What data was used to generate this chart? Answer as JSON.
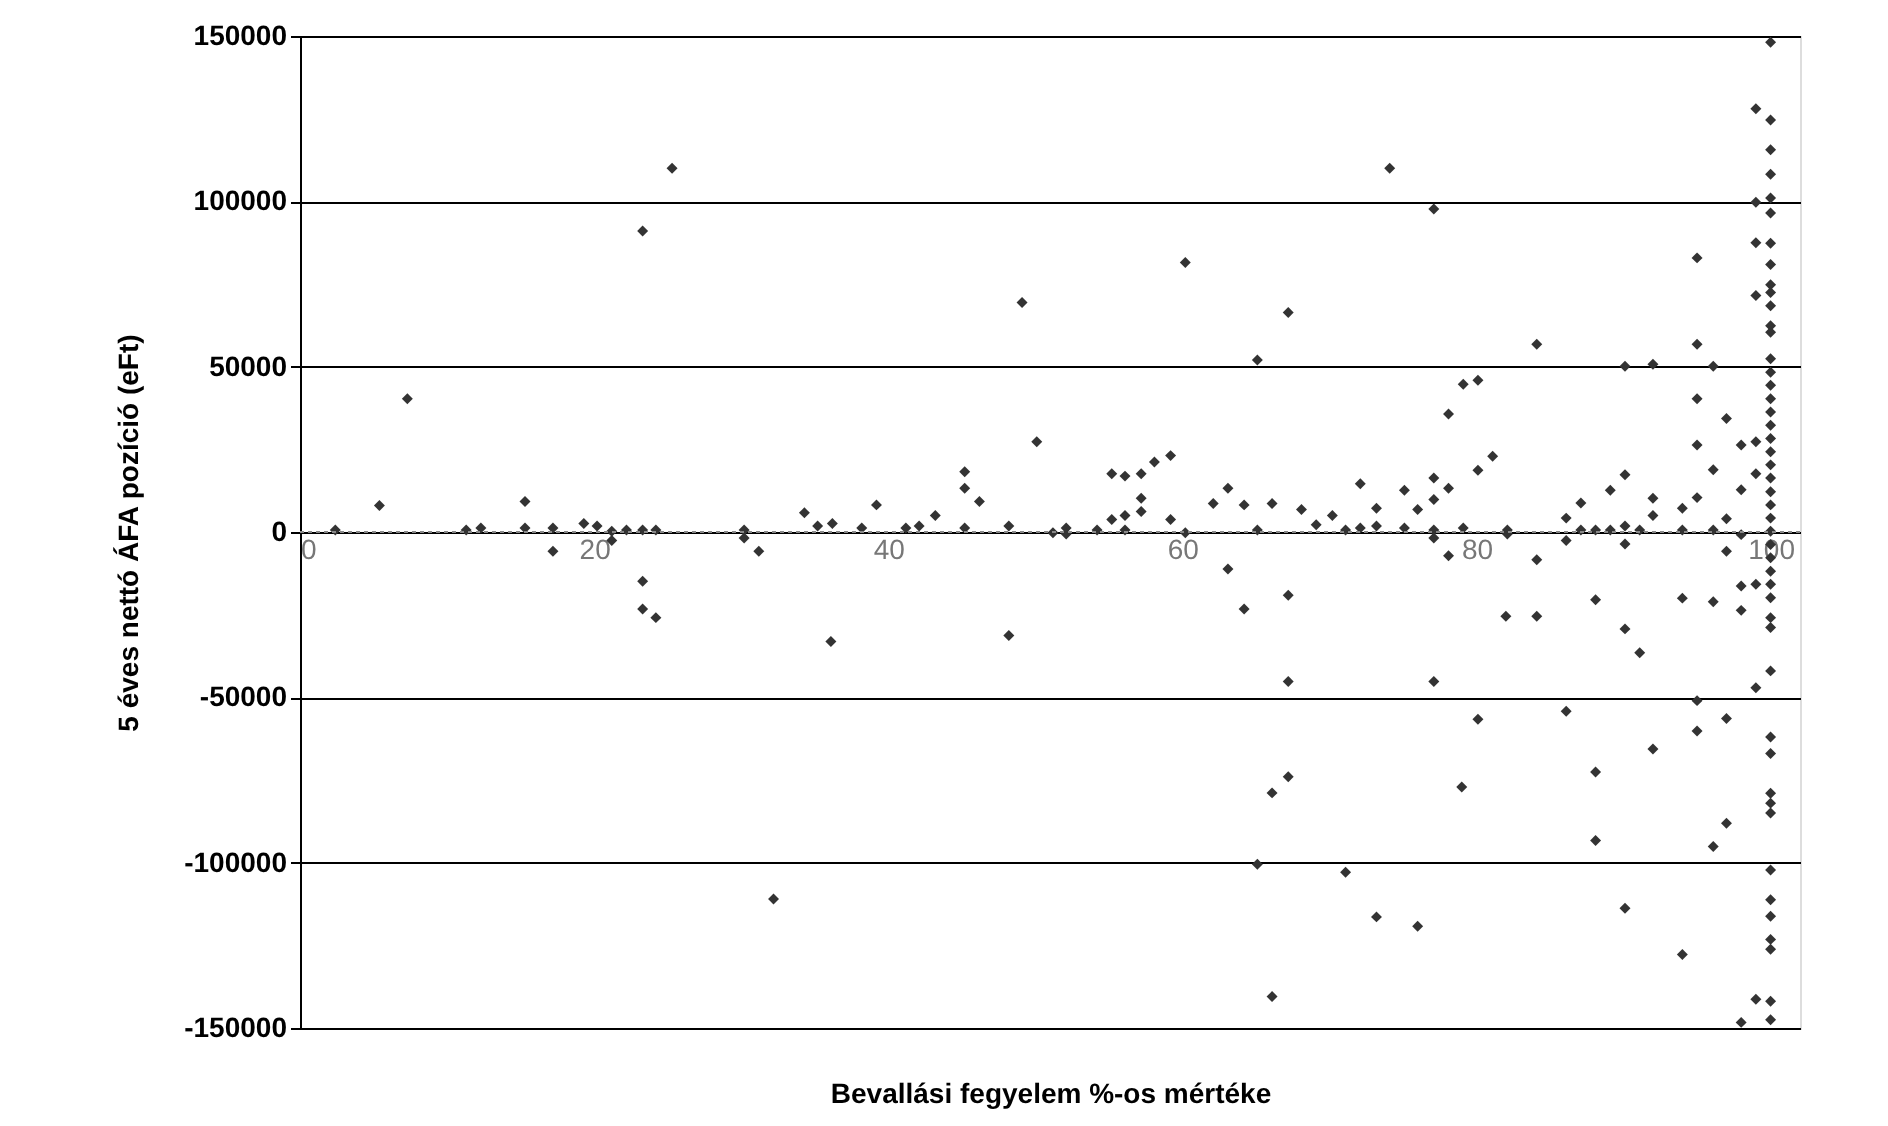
{
  "chart_data": {
    "type": "scatter",
    "xlabel": "Bevallási fegyelem %-os mértéke",
    "ylabel": "5 éves nettó ÁFA pozíció (eFt)",
    "xlim": [
      0,
      102
    ],
    "xticks": [
      0,
      20,
      40,
      60,
      80,
      100
    ],
    "ylim": [
      -150000,
      150000
    ],
    "yticks": [
      -150000,
      -100000,
      -50000,
      0,
      50000,
      100000,
      150000
    ],
    "grid": "y",
    "marker": "diamond",
    "ref_lines": [
      {
        "axis": "y",
        "value": 0,
        "color": "#888888",
        "line_style": "dotted"
      }
    ],
    "series": [
      {
        "color": "#333333",
        "x": [
          25.3,
          23.3,
          7.3,
          5.4,
          2.4,
          11.3,
          12.3,
          15.3,
          15.3,
          17.2,
          17.2,
          19.3,
          20.2,
          21.2,
          21.2,
          22.2,
          23.3,
          24.2,
          23.3,
          23.3,
          24.2,
          30.2,
          30.2,
          31.2,
          34.3,
          35.2,
          36.2,
          38.2,
          39.2,
          32.2,
          48.2,
          36.1,
          49.1,
          60.2,
          67.2,
          74.1,
          77.1,
          65.1,
          50.1,
          45.2,
          45.2,
          46.2,
          43.2,
          42.1,
          41.2,
          45.2,
          48.2,
          51.2,
          52.1,
          52.1,
          54.2,
          55.2,
          55.2,
          56.1,
          57.2,
          58.1,
          59.2,
          57.2,
          57.2,
          56.1,
          56.1,
          59.2,
          60.2,
          62.1,
          63.1,
          64.2,
          65.1,
          66.1,
          68.1,
          69.1,
          70.2,
          71.1,
          72.1,
          72.1,
          73.2,
          73.2,
          75.1,
          75.1,
          76.0,
          77.1,
          77.1,
          77.1,
          77.1,
          78.1,
          78.1,
          79.1,
          80.1,
          80.1,
          79.1,
          78.1,
          63.1,
          64.2,
          67.2,
          67.2,
          77.1,
          80.1,
          67.2,
          66.1,
          79.0,
          65.1,
          71.1,
          73.2,
          76.0,
          66.1,
          90.1,
          91.1,
          86.1,
          95.0,
          95.0,
          97.0,
          92.0,
          88.1,
          97.0,
          96.1,
          88.1,
          90.1,
          94.0,
          98.0,
          99.0,
          99.0,
          94.0,
          96.1,
          98.0,
          98.0,
          88.1,
          84.1,
          82.0,
          84.1,
          90.1,
          92.0,
          95.0,
          95.0,
          96.1,
          95.0,
          97.0,
          95.0,
          98.0,
          96.1,
          98.0,
          95.0,
          97.0,
          96.1,
          98.0,
          97.0,
          94.0,
          94.0,
          99.0,
          99.0,
          99.0,
          99.0,
          99.0,
          99.0,
          99.0,
          81.1,
          90.1,
          89.1,
          87.1,
          86.1,
          87.1,
          88.1,
          89.1,
          90.1,
          91.1,
          92.0,
          92.0,
          86.1,
          90.1,
          82.1,
          82.1,
          84.1,
          100,
          100,
          100,
          100,
          100,
          100,
          100,
          100,
          100,
          100,
          100,
          100,
          100,
          100,
          100,
          100,
          100,
          100,
          100,
          100,
          100,
          100,
          100,
          100,
          100,
          100,
          100,
          100,
          100,
          100,
          100,
          100,
          100,
          100,
          100,
          100,
          100,
          100,
          100,
          100,
          100,
          100,
          100,
          100,
          100,
          100,
          100
        ],
        "values": [
          110000,
          91000,
          40300,
          8000,
          600,
          600,
          1200,
          9200,
          1200,
          1200,
          -5800,
          2600,
          1800,
          200,
          -2600,
          600,
          600,
          600,
          -14900,
          -23300,
          -25900,
          600,
          -1800,
          -5800,
          5800,
          1800,
          2600,
          1200,
          8200,
          -111000,
          -31300,
          -33100,
          69400,
          81500,
          66400,
          110000,
          97700,
          52000,
          27300,
          18200,
          13200,
          9200,
          5000,
          1800,
          1200,
          1200,
          1800,
          -200,
          1200,
          -600,
          600,
          3800,
          17600,
          16900,
          17600,
          21200,
          23100,
          10200,
          6200,
          5000,
          600,
          3800,
          -200,
          8600,
          13200,
          8200,
          600,
          8600,
          6800,
          2200,
          5000,
          600,
          14600,
          1200,
          7200,
          1800,
          12600,
          1200,
          6800,
          16300,
          9800,
          600,
          -1800,
          13200,
          35700,
          44700,
          45900,
          18700,
          1200,
          -7200,
          -11200,
          -23300,
          -19100,
          -45200,
          -45200,
          -56600,
          -74000,
          -78900,
          -77100,
          -100500,
          -102900,
          -116400,
          -119200,
          -140500,
          -29300,
          -36500,
          -54200,
          -51000,
          -60200,
          -56400,
          -65600,
          -72600,
          -88100,
          -95100,
          -93300,
          -113800,
          -127800,
          -148300,
          -141300,
          -47100,
          -20000,
          -21100,
          -23700,
          -16300,
          -20500,
          -25500,
          -25500,
          56800,
          50100,
          50700,
          82900,
          56800,
          50100,
          40300,
          34300,
          26300,
          26300,
          18800,
          12800,
          10400,
          4000,
          600,
          -800,
          -5800,
          7200,
          600,
          87500,
          71500,
          99700,
          128000,
          27300,
          17600,
          -15800,
          22900,
          17300,
          12600,
          8800,
          4200,
          600,
          600,
          600,
          1800,
          600,
          10200,
          5000,
          -2600,
          -3600,
          600,
          -600,
          -8400,
          148100,
          124600,
          115600,
          108200,
          101000,
          96500,
          87300,
          80900,
          74800,
          72400,
          68400,
          62400,
          60400,
          52400,
          48300,
          44400,
          40300,
          36300,
          32300,
          28300,
          24300,
          20300,
          16300,
          12200,
          8200,
          4200,
          200,
          -3800,
          -7800,
          -11900,
          -15800,
          -19900,
          -25900,
          -28900,
          -42000,
          -62000,
          -67000,
          -79000,
          -82000,
          -85000,
          -102200,
          -111200,
          -116200,
          -123200,
          -126200,
          -141900,
          -147500
        ]
      }
    ]
  }
}
